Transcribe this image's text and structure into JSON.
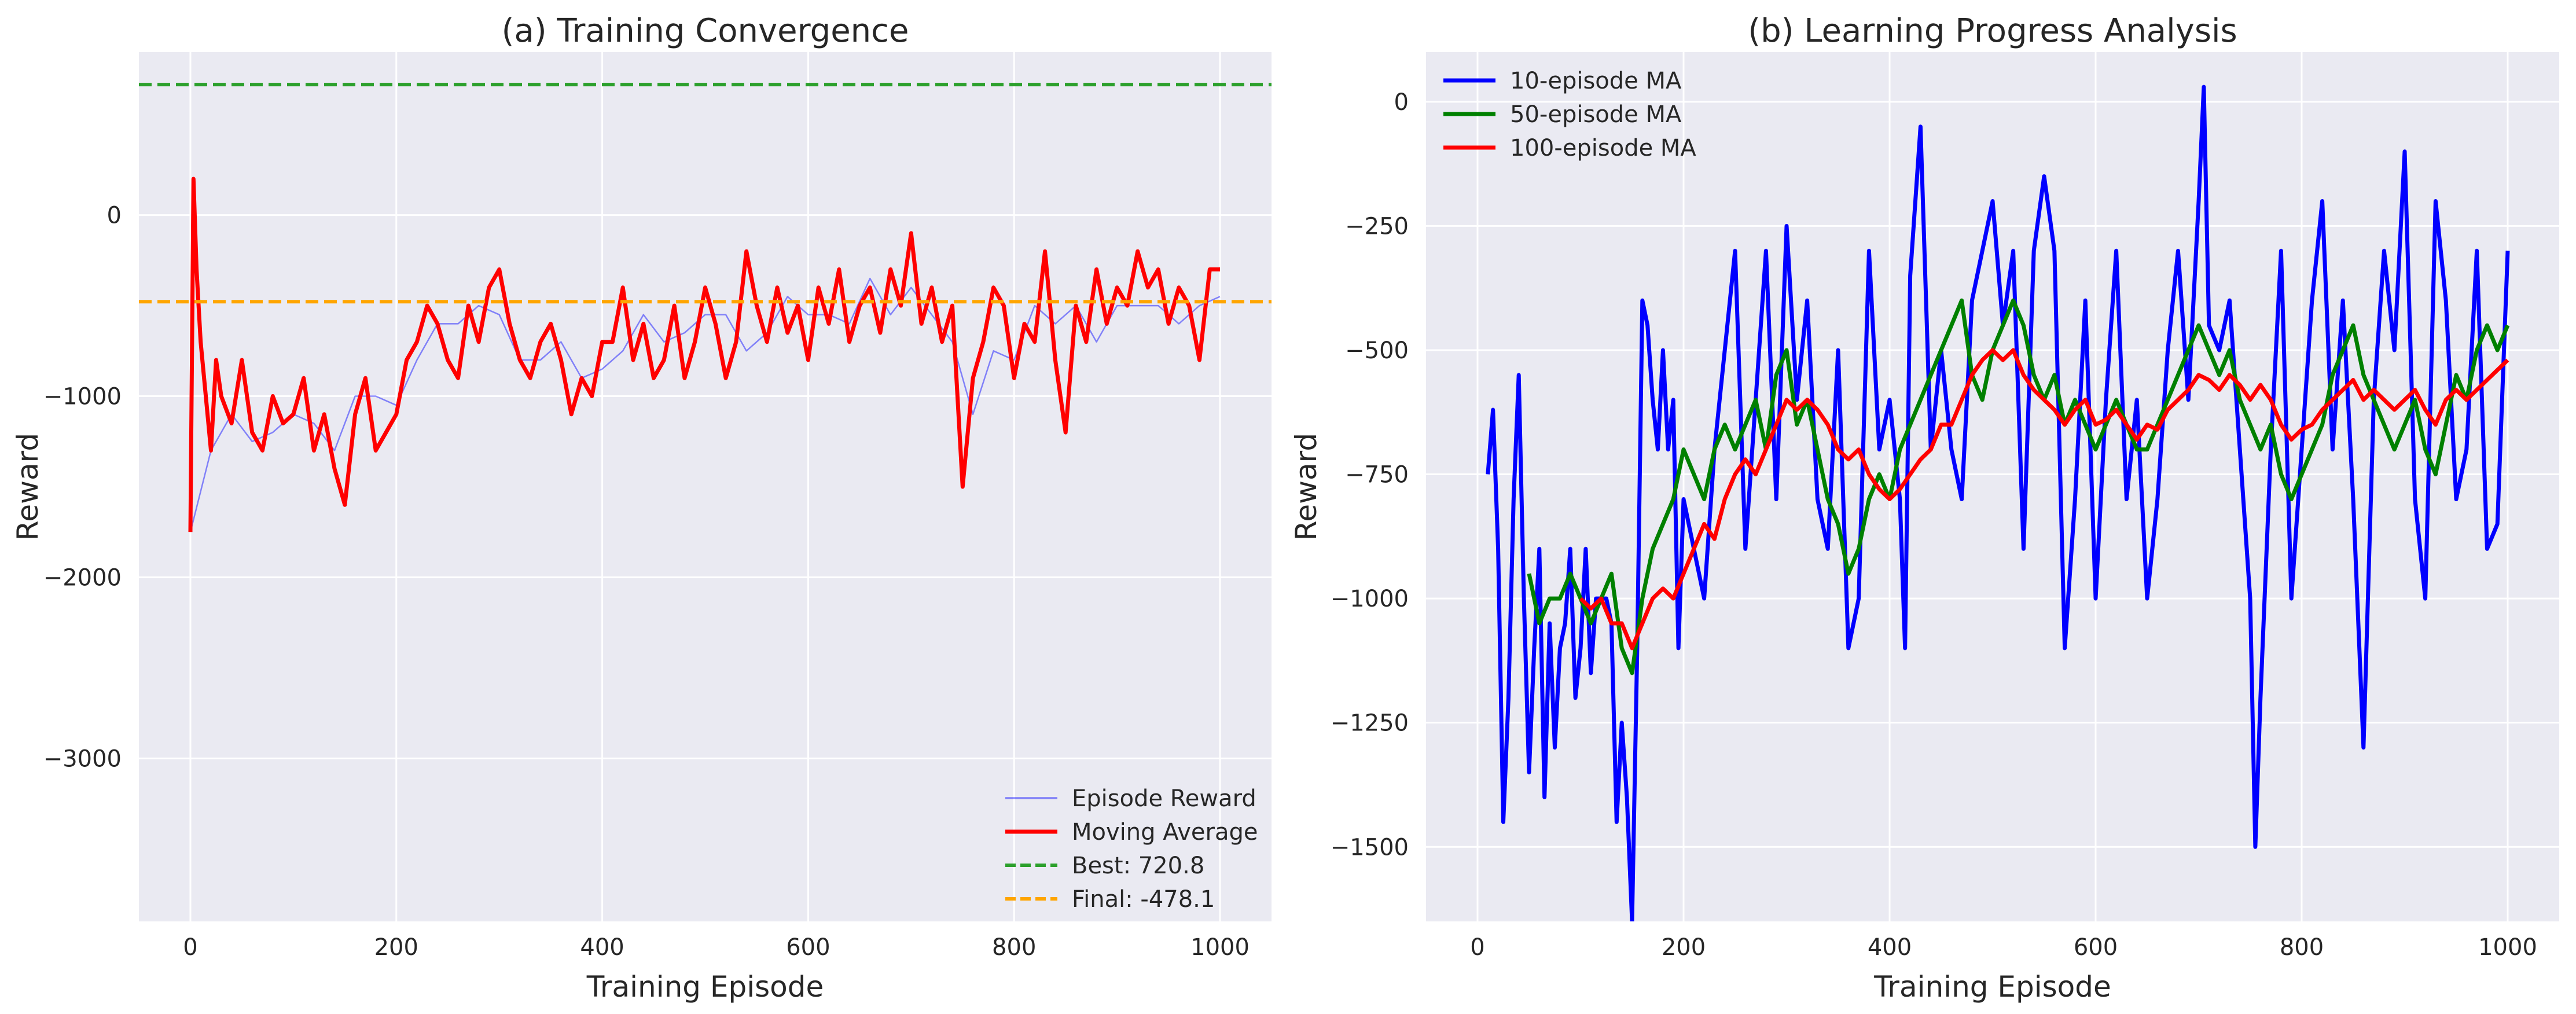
{
  "colors": {
    "background": "#ffffff",
    "axes_face": "#eaeaf2",
    "grid": "#ffffff",
    "episode_reward": "#0000ff",
    "moving_average": "#ff0000",
    "best_line": "#2ca02c",
    "final_line": "#ffa500",
    "ma10": "#0000ff",
    "ma50": "#008000",
    "ma100": "#ff0000"
  },
  "chart_data": [
    {
      "type": "line",
      "title": "(a) Training Convergence",
      "xlabel": "Training Episode",
      "ylabel": "Reward",
      "xlim": [
        -50,
        1050
      ],
      "ylim": [
        -3900,
        900
      ],
      "xticks": [
        0,
        200,
        400,
        600,
        800,
        1000
      ],
      "yticks": [
        -3000,
        -2000,
        -1000,
        0
      ],
      "grid": true,
      "legend_position": "lower-right",
      "series": [
        {
          "name": "Episode Reward",
          "style": "thin-line",
          "color_key": "episode_reward",
          "x": [
            0,
            20,
            40,
            60,
            80,
            100,
            120,
            140,
            160,
            180,
            200,
            220,
            240,
            260,
            280,
            300,
            320,
            340,
            360,
            380,
            400,
            420,
            440,
            460,
            480,
            500,
            520,
            540,
            560,
            580,
            600,
            620,
            640,
            660,
            680,
            700,
            720,
            740,
            760,
            780,
            800,
            820,
            840,
            860,
            880,
            900,
            920,
            940,
            960,
            980,
            1000
          ],
          "y": [
            -1750,
            -1300,
            -1100,
            -1250,
            -1200,
            -1100,
            -1150,
            -1300,
            -1000,
            -1000,
            -1050,
            -800,
            -600,
            -600,
            -500,
            -550,
            -800,
            -800,
            -700,
            -900,
            -850,
            -750,
            -550,
            -700,
            -650,
            -550,
            -550,
            -750,
            -650,
            -450,
            -550,
            -550,
            -600,
            -350,
            -550,
            -400,
            -550,
            -700,
            -1100,
            -750,
            -800,
            -500,
            -600,
            -500,
            -700,
            -500,
            -500,
            -500,
            -600,
            -500,
            -450
          ]
        },
        {
          "name": "Moving Average",
          "style": "thick-line",
          "color_key": "moving_average",
          "x": [
            0,
            3,
            6,
            10,
            15,
            20,
            25,
            30,
            40,
            50,
            60,
            70,
            80,
            90,
            100,
            110,
            120,
            130,
            140,
            150,
            160,
            170,
            180,
            190,
            200,
            210,
            220,
            230,
            240,
            250,
            260,
            270,
            280,
            290,
            300,
            310,
            320,
            330,
            340,
            350,
            360,
            370,
            380,
            390,
            400,
            410,
            420,
            430,
            440,
            450,
            460,
            470,
            480,
            490,
            500,
            510,
            520,
            530,
            540,
            550,
            560,
            570,
            580,
            590,
            600,
            610,
            620,
            630,
            640,
            650,
            660,
            670,
            680,
            690,
            700,
            710,
            720,
            730,
            740,
            750,
            760,
            770,
            780,
            790,
            800,
            810,
            820,
            830,
            840,
            850,
            860,
            870,
            880,
            890,
            900,
            910,
            920,
            930,
            940,
            950,
            960,
            970,
            980,
            990,
            1000
          ],
          "y": [
            -1750,
            200,
            -300,
            -700,
            -1000,
            -1300,
            -800,
            -1000,
            -1150,
            -800,
            -1200,
            -1300,
            -1000,
            -1150,
            -1100,
            -900,
            -1300,
            -1100,
            -1400,
            -1600,
            -1100,
            -900,
            -1300,
            -1200,
            -1100,
            -800,
            -700,
            -500,
            -600,
            -800,
            -900,
            -500,
            -700,
            -400,
            -300,
            -600,
            -800,
            -900,
            -700,
            -600,
            -800,
            -1100,
            -900,
            -1000,
            -700,
            -700,
            -400,
            -800,
            -600,
            -900,
            -800,
            -500,
            -900,
            -700,
            -400,
            -600,
            -900,
            -700,
            -200,
            -500,
            -700,
            -400,
            -650,
            -500,
            -800,
            -400,
            -600,
            -300,
            -700,
            -500,
            -400,
            -650,
            -300,
            -500,
            -100,
            -600,
            -400,
            -700,
            -500,
            -1500,
            -900,
            -700,
            -400,
            -500,
            -900,
            -600,
            -700,
            -200,
            -800,
            -1200,
            -500,
            -700,
            -300,
            -600,
            -400,
            -500,
            -200,
            -400,
            -300,
            -600,
            -400,
            -500,
            -800,
            -300,
            -300
          ]
        },
        {
          "name": "Best: 720.8",
          "style": "dashed-hline",
          "color_key": "best_line",
          "y": 720.8
        },
        {
          "name": "Final: -478.1",
          "style": "dashed-hline",
          "color_key": "final_line",
          "y": -478.1
        }
      ]
    },
    {
      "type": "line",
      "title": "(b) Learning Progress Analysis",
      "xlabel": "Training Episode",
      "ylabel": "Reward",
      "xlim": [
        -50,
        1050
      ],
      "ylim": [
        -1650,
        100
      ],
      "xticks": [
        0,
        200,
        400,
        600,
        800,
        1000
      ],
      "yticks": [
        -1500,
        -1250,
        -1000,
        -750,
        -500,
        -250,
        0
      ],
      "grid": true,
      "legend_position": "top-left",
      "series": [
        {
          "name": "10-episode MA",
          "color_key": "ma10",
          "x": [
            10,
            15,
            20,
            25,
            30,
            35,
            40,
            45,
            50,
            55,
            60,
            65,
            70,
            75,
            80,
            85,
            90,
            95,
            100,
            105,
            110,
            115,
            120,
            125,
            130,
            135,
            140,
            145,
            150,
            155,
            160,
            165,
            170,
            175,
            180,
            185,
            190,
            195,
            200,
            210,
            220,
            230,
            240,
            250,
            260,
            270,
            280,
            290,
            300,
            310,
            320,
            330,
            340,
            350,
            360,
            370,
            380,
            390,
            400,
            410,
            415,
            420,
            425,
            430,
            440,
            450,
            460,
            470,
            480,
            490,
            500,
            510,
            520,
            530,
            540,
            550,
            560,
            570,
            580,
            590,
            600,
            610,
            620,
            630,
            640,
            650,
            660,
            670,
            680,
            690,
            700,
            705,
            710,
            720,
            730,
            740,
            750,
            755,
            760,
            770,
            780,
            790,
            800,
            810,
            820,
            830,
            840,
            850,
            860,
            870,
            880,
            890,
            900,
            910,
            920,
            930,
            940,
            950,
            960,
            970,
            980,
            990,
            1000
          ],
          "y": [
            -750,
            -620,
            -900,
            -1450,
            -1200,
            -800,
            -550,
            -1000,
            -1350,
            -1100,
            -900,
            -1400,
            -1050,
            -1300,
            -1100,
            -1050,
            -900,
            -1200,
            -1100,
            -900,
            -1150,
            -1000,
            -1000,
            -1000,
            -1050,
            -1450,
            -1250,
            -1400,
            -1650,
            -1100,
            -400,
            -450,
            -600,
            -700,
            -500,
            -700,
            -600,
            -1100,
            -800,
            -900,
            -1000,
            -700,
            -500,
            -300,
            -900,
            -600,
            -300,
            -800,
            -250,
            -600,
            -400,
            -800,
            -900,
            -500,
            -1100,
            -1000,
            -300,
            -700,
            -600,
            -800,
            -1100,
            -350,
            -200,
            -50,
            -700,
            -500,
            -700,
            -800,
            -400,
            -300,
            -200,
            -450,
            -300,
            -900,
            -300,
            -150,
            -300,
            -1100,
            -800,
            -400,
            -1000,
            -600,
            -300,
            -800,
            -600,
            -1000,
            -800,
            -500,
            -300,
            -600,
            -200,
            30,
            -450,
            -500,
            -400,
            -700,
            -1000,
            -1500,
            -1200,
            -700,
            -300,
            -1000,
            -700,
            -400,
            -200,
            -700,
            -400,
            -800,
            -1300,
            -600,
            -300,
            -500,
            -100,
            -800,
            -1000,
            -200,
            -400,
            -800,
            -700,
            -300,
            -900,
            -850,
            -300
          ]
        },
        {
          "name": "50-episode MA",
          "color_key": "ma50",
          "x": [
            50,
            60,
            70,
            80,
            90,
            100,
            110,
            120,
            130,
            140,
            150,
            160,
            170,
            180,
            190,
            200,
            210,
            220,
            230,
            240,
            250,
            260,
            270,
            280,
            290,
            300,
            310,
            320,
            330,
            340,
            350,
            360,
            370,
            380,
            390,
            400,
            410,
            420,
            430,
            440,
            450,
            460,
            470,
            480,
            490,
            500,
            510,
            520,
            530,
            540,
            550,
            560,
            570,
            580,
            590,
            600,
            610,
            620,
            630,
            640,
            650,
            660,
            670,
            680,
            690,
            700,
            710,
            720,
            730,
            740,
            750,
            760,
            770,
            780,
            790,
            800,
            810,
            820,
            830,
            840,
            850,
            860,
            870,
            880,
            890,
            900,
            910,
            920,
            930,
            940,
            950,
            960,
            970,
            980,
            990,
            1000
          ],
          "y": [
            -950,
            -1050,
            -1000,
            -1000,
            -950,
            -1000,
            -1050,
            -1000,
            -950,
            -1100,
            -1150,
            -1000,
            -900,
            -850,
            -800,
            -700,
            -750,
            -800,
            -700,
            -650,
            -700,
            -650,
            -600,
            -700,
            -550,
            -500,
            -650,
            -600,
            -700,
            -800,
            -850,
            -950,
            -900,
            -800,
            -750,
            -800,
            -700,
            -650,
            -600,
            -550,
            -500,
            -450,
            -400,
            -550,
            -600,
            -500,
            -450,
            -400,
            -450,
            -550,
            -600,
            -550,
            -650,
            -600,
            -650,
            -700,
            -650,
            -600,
            -650,
            -700,
            -700,
            -650,
            -600,
            -550,
            -500,
            -450,
            -500,
            -550,
            -500,
            -600,
            -650,
            -700,
            -650,
            -750,
            -800,
            -750,
            -700,
            -650,
            -550,
            -500,
            -450,
            -550,
            -600,
            -650,
            -700,
            -650,
            -600,
            -700,
            -750,
            -650,
            -550,
            -600,
            -500,
            -450,
            -500,
            -450
          ]
        },
        {
          "name": "100-episode MA",
          "color_key": "ma100",
          "x": [
            100,
            110,
            120,
            130,
            140,
            150,
            160,
            170,
            180,
            190,
            200,
            210,
            220,
            230,
            240,
            250,
            260,
            270,
            280,
            290,
            300,
            310,
            320,
            330,
            340,
            350,
            360,
            370,
            380,
            390,
            400,
            410,
            420,
            430,
            440,
            450,
            460,
            470,
            480,
            490,
            500,
            510,
            520,
            530,
            540,
            550,
            560,
            570,
            580,
            590,
            600,
            610,
            620,
            630,
            640,
            650,
            660,
            670,
            680,
            690,
            700,
            710,
            720,
            730,
            740,
            750,
            760,
            770,
            780,
            790,
            800,
            810,
            820,
            830,
            840,
            850,
            860,
            870,
            880,
            890,
            900,
            910,
            920,
            930,
            940,
            950,
            960,
            970,
            980,
            990,
            1000
          ],
          "y": [
            -1000,
            -1020,
            -1000,
            -1050,
            -1050,
            -1100,
            -1050,
            -1000,
            -980,
            -1000,
            -950,
            -900,
            -850,
            -880,
            -800,
            -750,
            -720,
            -750,
            -700,
            -650,
            -600,
            -620,
            -600,
            -620,
            -650,
            -700,
            -720,
            -700,
            -750,
            -780,
            -800,
            -780,
            -750,
            -720,
            -700,
            -650,
            -650,
            -600,
            -550,
            -520,
            -500,
            -520,
            -500,
            -550,
            -580,
            -600,
            -620,
            -650,
            -620,
            -600,
            -650,
            -640,
            -620,
            -650,
            -680,
            -650,
            -660,
            -620,
            -600,
            -580,
            -550,
            -560,
            -580,
            -550,
            -570,
            -600,
            -570,
            -600,
            -650,
            -680,
            -660,
            -650,
            -620,
            -600,
            -580,
            -560,
            -600,
            -580,
            -600,
            -620,
            -600,
            -580,
            -620,
            -650,
            -600,
            -580,
            -600,
            -580,
            -560,
            -540,
            -520
          ]
        }
      ]
    }
  ]
}
